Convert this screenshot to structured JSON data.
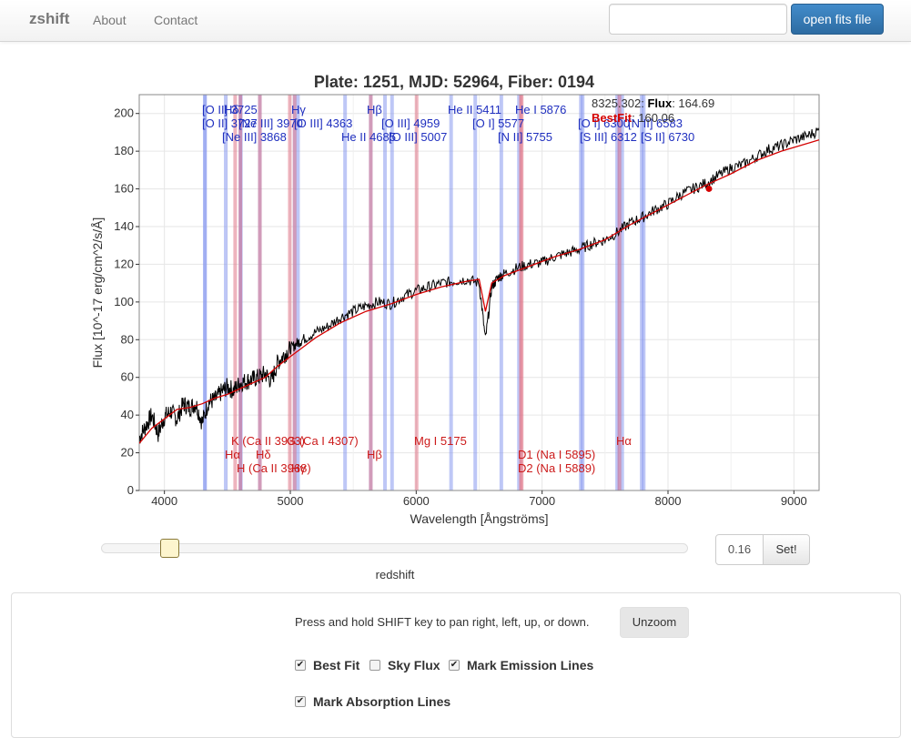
{
  "nav": {
    "brand": "zshift",
    "links": [
      "About",
      "Contact"
    ],
    "file_value": "",
    "open_button": "open fits file"
  },
  "tooltip": {
    "wavelength": "8325.302",
    "flux_label": "Flux",
    "flux_value": "164.69",
    "bestfit_label": "BestFit",
    "bestfit_value": "160.06"
  },
  "controls": {
    "redshift_label": "redshift",
    "redshift_value": "0.16",
    "redshift_fraction": 0.117,
    "set_button": "Set!",
    "help_text": "Press and hold SHIFT key to pan right, left, up, or down.",
    "unzoom_button": "Unzoom",
    "options": [
      {
        "label": "Best Fit",
        "checked": true
      },
      {
        "label": "Sky Flux",
        "checked": false
      },
      {
        "label": "Mark Emission Lines",
        "checked": true
      },
      {
        "label": "Mark Absorption Lines",
        "checked": true
      }
    ]
  },
  "colors": {
    "flux": "#000000",
    "bestfit": "#d40000",
    "emission": "#1f2fbf",
    "absorption": "#cc1a1a",
    "emission_band": "#8899ee",
    "absorption_band": "#e07788",
    "grid": "#e6e6e6"
  },
  "chart_data": {
    "type": "line",
    "title": "Plate: 1251, MJD: 52964, Fiber: 0194",
    "xlabel": "Wavelength [Ångströms]",
    "ylabel": "Flux [10^-17 erg/cm^2/s/Å]",
    "xlim": [
      3800,
      9200
    ],
    "ylim": [
      0,
      210
    ],
    "xticks": [
      4000,
      5000,
      6000,
      7000,
      8000,
      9000
    ],
    "yticks": [
      0,
      20,
      40,
      60,
      80,
      100,
      120,
      140,
      160,
      180,
      200
    ],
    "grid": true,
    "series": [
      {
        "name": "Flux",
        "x": [
          3800,
          3850,
          3900,
          3950,
          4000,
          4050,
          4100,
          4150,
          4200,
          4250,
          4300,
          4350,
          4400,
          4450,
          4500,
          4550,
          4600,
          4650,
          4700,
          4750,
          4800,
          4850,
          4900,
          4950,
          5000,
          5050,
          5100,
          5200,
          5300,
          5400,
          5500,
          5600,
          5700,
          5800,
          5900,
          6000,
          6100,
          6200,
          6300,
          6400,
          6500,
          6550,
          6600,
          6650,
          6700,
          6800,
          6900,
          7000,
          7100,
          7200,
          7300,
          7400,
          7500,
          7600,
          7700,
          7800,
          7900,
          8000,
          8100,
          8200,
          8300,
          8400,
          8500,
          8600,
          8700,
          8800,
          8900,
          9000,
          9100,
          9200
        ],
        "y": [
          28,
          34,
          40,
          30,
          39,
          42,
          38,
          46,
          44,
          46,
          36,
          47,
          48,
          52,
          55,
          53,
          57,
          58,
          59,
          60,
          62,
          58,
          68,
          72,
          75,
          78,
          80,
          84,
          87,
          92,
          95,
          98,
          100,
          99,
          103,
          106,
          108,
          110,
          111,
          112,
          110,
          80,
          108,
          113,
          115,
          118,
          120,
          121,
          124,
          126,
          128,
          131,
          133,
          137,
          142,
          145,
          149,
          152,
          157,
          160,
          163,
          167,
          171,
          173,
          177,
          181,
          183,
          186,
          188,
          191
        ]
      },
      {
        "name": "BestFit",
        "x": [
          3800,
          3900,
          4000,
          4100,
          4200,
          4300,
          4400,
          4500,
          4600,
          4700,
          4800,
          4900,
          5000,
          5100,
          5200,
          5400,
          5600,
          5800,
          6000,
          6200,
          6400,
          6500,
          6550,
          6600,
          6700,
          6900,
          7100,
          7300,
          7500,
          7700,
          7900,
          8100,
          8300,
          8500,
          8700,
          8900,
          9100,
          9200
        ],
        "y": [
          25,
          33,
          38,
          43,
          44,
          46,
          49,
          51,
          54,
          57,
          60,
          66,
          71,
          76,
          81,
          89,
          95,
          99,
          104,
          108,
          111,
          112,
          95,
          110,
          114,
          119,
          124,
          128,
          133,
          141,
          148,
          155,
          162,
          168,
          175,
          180,
          184,
          186
        ]
      }
    ],
    "emission_lines": [
      {
        "label": "[O II] 3725",
        "x": 4321
      },
      {
        "label": "[O II] 3727",
        "x": 4323
      },
      {
        "label": "Hδ",
        "x": 4758
      },
      {
        "label": "Hε",
        "x": 4606
      },
      {
        "label": "[Ne III] 3868",
        "x": 4487
      },
      {
        "label": "[Ne III] 3970",
        "x": 4605
      },
      {
        "label": "Hγ",
        "x": 5034
      },
      {
        "label": "[O III] 4363",
        "x": 5061
      },
      {
        "label": "He II 4685",
        "x": 5435
      },
      {
        "label": "Hβ",
        "x": 5639
      },
      {
        "label": "[O III] 4959",
        "x": 5752
      },
      {
        "label": "[O III] 5007",
        "x": 5808
      },
      {
        "label": "He II 5411",
        "x": 6277
      },
      {
        "label": "[O I] 5577",
        "x": 6469
      },
      {
        "label": "[N II] 5755",
        "x": 6676
      },
      {
        "label": "He I 5876",
        "x": 6816
      },
      {
        "label": "[O I] 6300",
        "x": 7308
      },
      {
        "label": "[S III] 6312",
        "x": 7322
      },
      {
        "label": "[N II] 6548",
        "x": 7596
      },
      {
        "label": "Hα",
        "x": 7614
      },
      {
        "label": "[N II] 6583",
        "x": 7636
      },
      {
        "label": "[S II] 6716",
        "x": 7791
      },
      {
        "label": "[S II] 6730",
        "x": 7807
      }
    ],
    "absorption_lines": [
      {
        "label": "K (Ca II 3933)",
        "x": 4562
      },
      {
        "label": "H (Ca II 3968)",
        "x": 4603
      },
      {
        "label": "Hδ",
        "x": 4758
      },
      {
        "label": "G (Ca I 4307)",
        "x": 4996
      },
      {
        "label": "Hγ",
        "x": 5034
      },
      {
        "label": "Hβ",
        "x": 5639
      },
      {
        "label": "Mg I 5175",
        "x": 6003
      },
      {
        "label": "D2 (Na I 5889)",
        "x": 6831
      },
      {
        "label": "D1 (Na I 5895)",
        "x": 6838
      },
      {
        "label": "Hα",
        "x": 7614
      }
    ],
    "marker": {
      "x": 8325.302,
      "y": 160.06
    }
  }
}
